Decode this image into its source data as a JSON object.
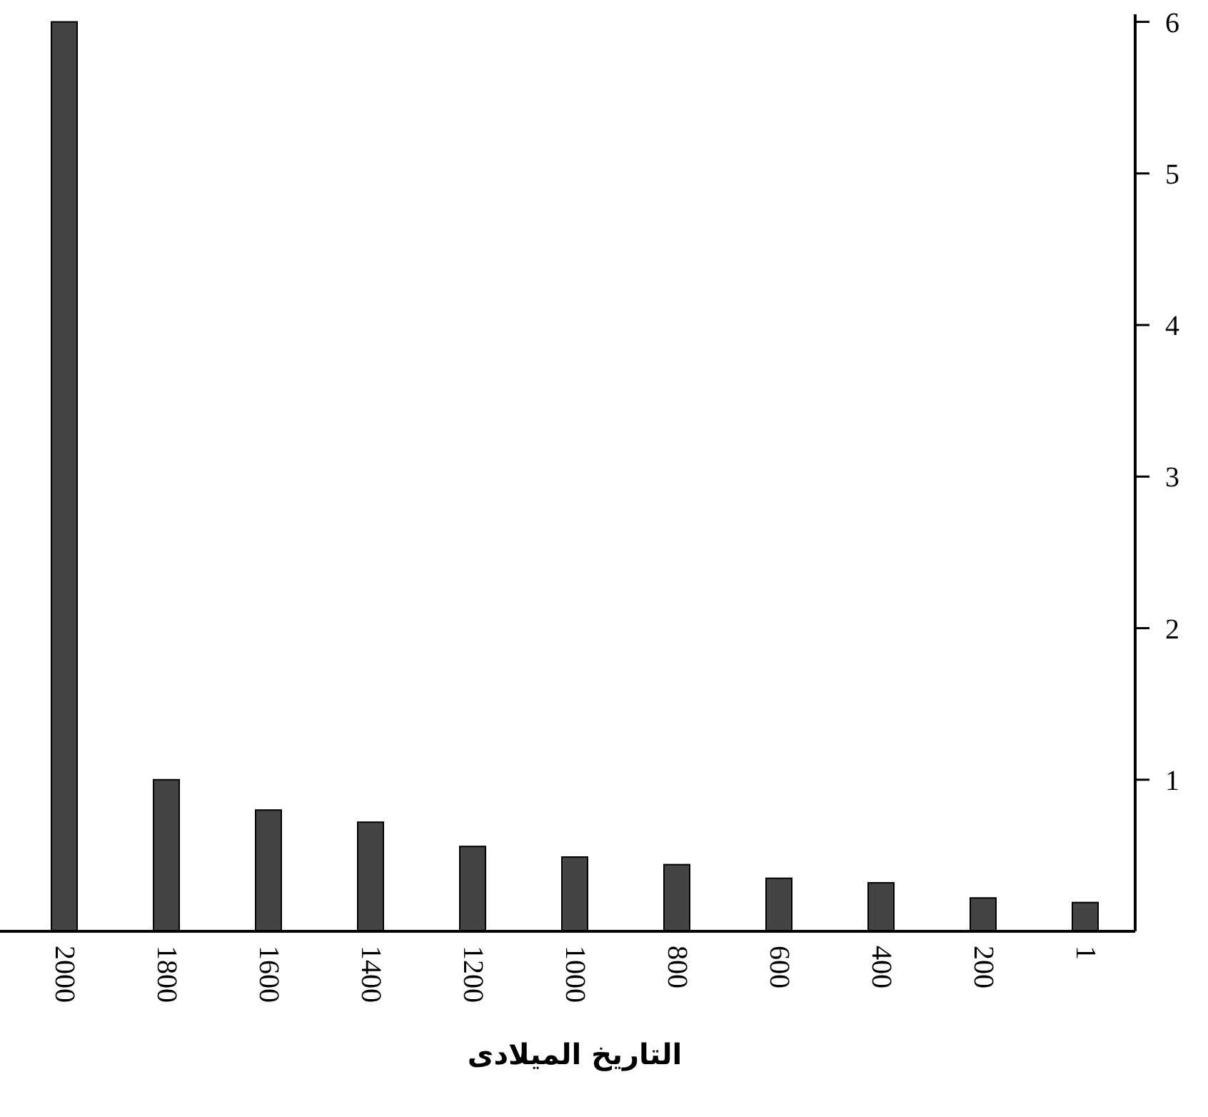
{
  "chart_data": {
    "type": "bar",
    "xlabel": "التاريخ الميلادى",
    "categories": [
      "2000",
      "1800",
      "1600",
      "1400",
      "1200",
      "1000",
      "800",
      "600",
      "400",
      "200",
      "1"
    ],
    "values": [
      6.0,
      1.0,
      0.8,
      0.72,
      0.56,
      0.49,
      0.44,
      0.35,
      0.32,
      0.22,
      0.19
    ],
    "color": "#444444",
    "ylim": [
      0,
      6.05
    ],
    "yticks": [
      1,
      2,
      3,
      4,
      5,
      6
    ]
  }
}
